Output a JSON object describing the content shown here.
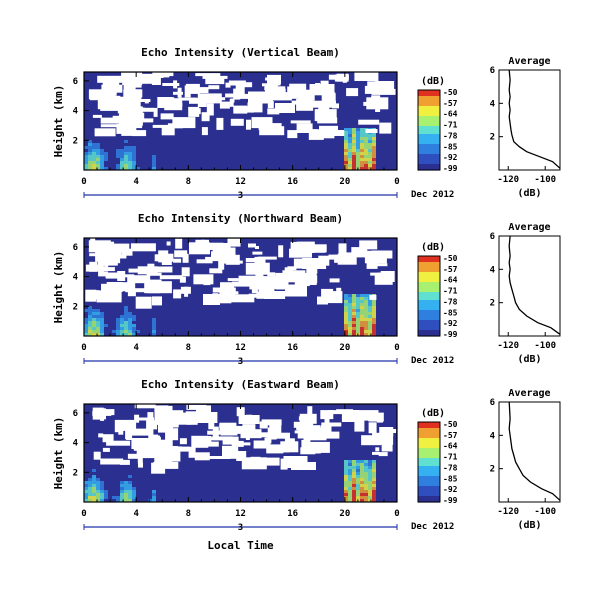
{
  "chart_data": [
    {
      "type": "heatmap",
      "title": "Echo Intensity (Vertical Beam)",
      "ylabel": "Height (km)",
      "xlabel": "",
      "x_ticks": [
        "0",
        "4",
        "8",
        "12",
        "16",
        "20",
        "0"
      ],
      "y_ticks": [
        "6",
        "4",
        "2"
      ],
      "date_marker": "3",
      "date_label": "Dec 2012",
      "colorbar": {
        "unit": "(dB)",
        "ticks": [
          "-50",
          "-57",
          "-64",
          "-71",
          "-78",
          "-85",
          "-92",
          "-99"
        ]
      },
      "average_profile": {
        "title": "Average",
        "xlabel": "(dB)",
        "x_ticks": [
          "-120",
          "-100"
        ],
        "y_ticks": [
          "6",
          "4",
          "2"
        ],
        "xlim": [
          -125,
          -92
        ],
        "ylim": [
          0,
          6
        ],
        "points": [
          [
            -92,
            0.1
          ],
          [
            -96,
            0.5
          ],
          [
            -103,
            0.8
          ],
          [
            -110,
            1.1
          ],
          [
            -114,
            1.4
          ],
          [
            -117,
            1.7
          ],
          [
            -118,
            2.1
          ],
          [
            -118.5,
            2.4
          ],
          [
            -119,
            2.8
          ],
          [
            -119.5,
            3.2
          ],
          [
            -119,
            3.6
          ],
          [
            -119.5,
            4.0
          ],
          [
            -119,
            4.4
          ],
          [
            -119.5,
            4.8
          ],
          [
            -119,
            5.4
          ],
          [
            -119.5,
            6.0
          ]
        ]
      }
    },
    {
      "type": "heatmap",
      "title": "Echo Intensity (Northward Beam)",
      "ylabel": "Height (km)",
      "xlabel": "",
      "x_ticks": [
        "0",
        "4",
        "8",
        "12",
        "16",
        "20",
        "0"
      ],
      "y_ticks": [
        "6",
        "4",
        "2"
      ],
      "date_marker": "3",
      "date_label": "Dec 2012",
      "colorbar": {
        "unit": "(dB)",
        "ticks": [
          "-50",
          "-57",
          "-64",
          "-71",
          "-78",
          "-85",
          "-92",
          "-99"
        ]
      },
      "average_profile": {
        "title": "Average",
        "xlabel": "(dB)",
        "x_ticks": [
          "-120",
          "-100"
        ],
        "y_ticks": [
          "6",
          "4",
          "2"
        ],
        "xlim": [
          -125,
          -92
        ],
        "ylim": [
          0,
          6
        ],
        "points": [
          [
            -92,
            0.1
          ],
          [
            -97,
            0.5
          ],
          [
            -104,
            0.8
          ],
          [
            -110,
            1.2
          ],
          [
            -114,
            1.6
          ],
          [
            -116,
            2.0
          ],
          [
            -117,
            2.4
          ],
          [
            -118,
            2.8
          ],
          [
            -119,
            3.2
          ],
          [
            -119.5,
            3.6
          ],
          [
            -119,
            4.0
          ],
          [
            -119.5,
            4.4
          ],
          [
            -119,
            4.8
          ],
          [
            -119.5,
            5.4
          ],
          [
            -119,
            6.0
          ]
        ]
      }
    },
    {
      "type": "heatmap",
      "title": "Echo Intensity (Eastward Beam)",
      "ylabel": "Height (km)",
      "xlabel": "Local Time",
      "x_ticks": [
        "0",
        "4",
        "8",
        "12",
        "16",
        "20",
        "0"
      ],
      "y_ticks": [
        "6",
        "4",
        "2"
      ],
      "date_marker": "3",
      "date_label": "Dec 2012",
      "colorbar": {
        "unit": "(dB)",
        "ticks": [
          "-50",
          "-57",
          "-64",
          "-71",
          "-78",
          "-85",
          "-92",
          "-99"
        ]
      },
      "average_profile": {
        "title": "Average",
        "xlabel": "(dB)",
        "x_ticks": [
          "-120",
          "-100"
        ],
        "y_ticks": [
          "6",
          "4",
          "2"
        ],
        "xlim": [
          -125,
          -92
        ],
        "ylim": [
          0,
          6
        ],
        "points": [
          [
            -92,
            0.1
          ],
          [
            -96,
            0.5
          ],
          [
            -102,
            0.8
          ],
          [
            -108,
            1.2
          ],
          [
            -112,
            1.6
          ],
          [
            -114,
            2.0
          ],
          [
            -116,
            2.4
          ],
          [
            -117,
            2.8
          ],
          [
            -118,
            3.2
          ],
          [
            -118.5,
            3.6
          ],
          [
            -119,
            4.0
          ],
          [
            -119.5,
            4.4
          ],
          [
            -119,
            5.0
          ],
          [
            -119.5,
            6.0
          ]
        ]
      }
    }
  ],
  "colors": {
    "background_echo": "#2b2f8f",
    "colormap": [
      "#2b2f8f",
      "#2f4fbf",
      "#2f7fe0",
      "#35b0f0",
      "#5fe0d0",
      "#a8f070",
      "#f0f040",
      "#f0a030",
      "#e03020"
    ]
  }
}
